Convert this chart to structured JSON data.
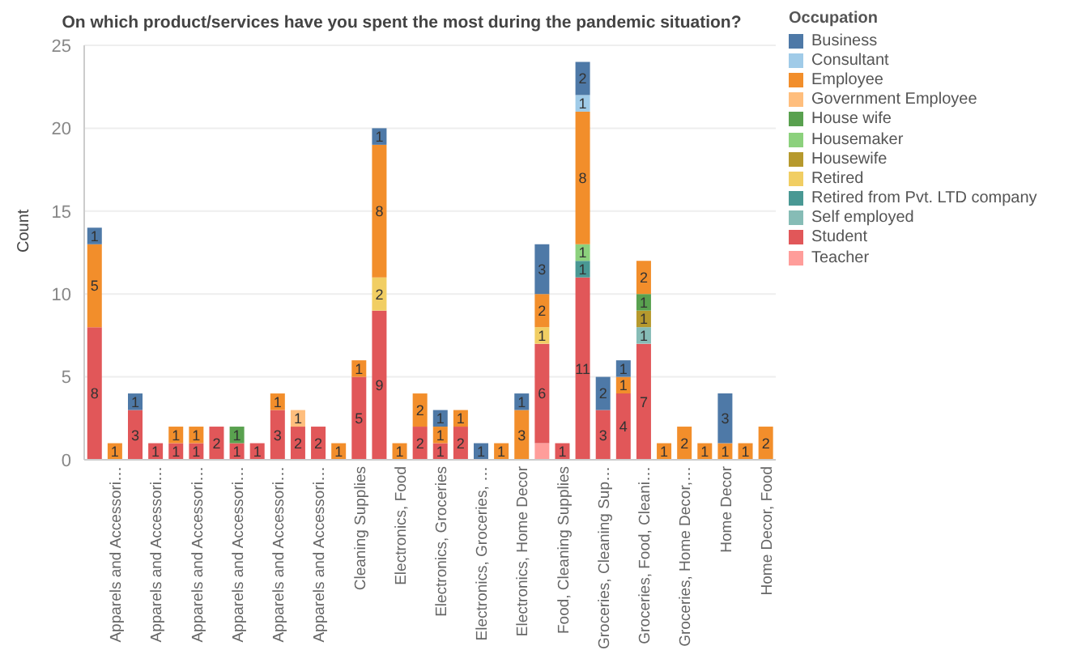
{
  "chart_data": {
    "type": "bar",
    "title": "On which product/services have you spent the most during the pandemic situation?",
    "ylabel": "Count",
    "legend_title": "Occupation",
    "categories": [
      null,
      "Apparels and Accessori…",
      null,
      "Apparels and Accessori…",
      null,
      "Apparels and Accessori…",
      null,
      "Apparels and Accessori…",
      null,
      "Apparels and Accessori…",
      null,
      "Apparels and Accessori…",
      null,
      "Cleaning Supplies",
      null,
      "Electronics, Food",
      null,
      "Electronics, Groceries",
      null,
      "Electronics, Groceries, …",
      null,
      "Electronics, Home Decor",
      null,
      "Food, Cleaning Supplies",
      null,
      "Groceries, Cleaning Sup…",
      null,
      "Groceries, Food, Cleani…",
      null,
      "Groceries, Home Decor,…",
      null,
      "Home Decor",
      null,
      "Home Decor, Food"
    ],
    "stacked": true,
    "data_labels": true,
    "ylim": [
      0,
      25
    ],
    "yticks": [
      0,
      5,
      10,
      15,
      20,
      25
    ],
    "grid": "y",
    "legend": "top right",
    "series": [
      {
        "name": "Teacher",
        "color": "#ff9d9a",
        "values": [
          null,
          null,
          null,
          null,
          null,
          null,
          null,
          null,
          null,
          null,
          null,
          null,
          null,
          null,
          null,
          null,
          null,
          null,
          null,
          null,
          null,
          null,
          1,
          null,
          null,
          null,
          null,
          null,
          null,
          null,
          null,
          null,
          null,
          null
        ],
        "value_labels": [
          null,
          null,
          null,
          null,
          null,
          null,
          null,
          null,
          null,
          null,
          null,
          null,
          null,
          null,
          null,
          null,
          null,
          null,
          null,
          null,
          null,
          null,
          null,
          null,
          null,
          null,
          null,
          null,
          null,
          null,
          null,
          null,
          null,
          null
        ]
      },
      {
        "name": "Student",
        "color": "#e15759",
        "values": [
          8,
          null,
          3,
          1,
          1,
          1,
          2,
          1,
          1,
          3,
          2,
          2,
          null,
          5,
          9,
          null,
          2,
          1,
          2,
          null,
          null,
          null,
          6,
          1,
          11,
          3,
          4,
          7,
          null,
          null,
          null,
          null,
          null,
          null
        ]
      },
      {
        "name": "Self employed",
        "color": "#86bcb6",
        "values": [
          null,
          null,
          null,
          null,
          null,
          null,
          null,
          null,
          null,
          null,
          null,
          null,
          null,
          null,
          null,
          null,
          null,
          null,
          null,
          null,
          null,
          null,
          null,
          null,
          null,
          null,
          null,
          1,
          null,
          null,
          null,
          null,
          null,
          null
        ]
      },
      {
        "name": "Retired from Pvt. LTD company",
        "color": "#499894",
        "values": [
          null,
          null,
          null,
          null,
          null,
          null,
          null,
          null,
          null,
          null,
          null,
          null,
          null,
          null,
          null,
          null,
          null,
          null,
          null,
          null,
          null,
          null,
          null,
          null,
          1,
          null,
          null,
          null,
          null,
          null,
          null,
          null,
          null,
          null
        ]
      },
      {
        "name": "Retired",
        "color": "#f1ce63",
        "values": [
          null,
          null,
          null,
          null,
          null,
          null,
          null,
          null,
          null,
          null,
          null,
          null,
          null,
          null,
          2,
          null,
          null,
          null,
          null,
          null,
          null,
          null,
          1,
          null,
          null,
          null,
          null,
          null,
          null,
          null,
          null,
          null,
          null,
          null
        ]
      },
      {
        "name": "Housewife",
        "color": "#b6992d",
        "values": [
          null,
          null,
          null,
          null,
          null,
          null,
          null,
          null,
          null,
          null,
          null,
          null,
          null,
          null,
          null,
          null,
          null,
          null,
          null,
          null,
          null,
          null,
          null,
          null,
          null,
          null,
          null,
          1,
          null,
          null,
          null,
          null,
          null,
          null
        ]
      },
      {
        "name": "Housemaker",
        "color": "#8cd17d",
        "values": [
          null,
          null,
          null,
          null,
          null,
          null,
          null,
          null,
          null,
          null,
          null,
          null,
          null,
          null,
          null,
          null,
          null,
          null,
          null,
          null,
          null,
          null,
          null,
          null,
          1,
          null,
          null,
          null,
          null,
          null,
          null,
          null,
          null,
          null
        ]
      },
      {
        "name": "House wife",
        "color": "#59a14f",
        "values": [
          null,
          null,
          null,
          null,
          null,
          null,
          null,
          1,
          null,
          null,
          null,
          null,
          null,
          null,
          null,
          null,
          null,
          null,
          null,
          null,
          null,
          null,
          null,
          null,
          null,
          null,
          null,
          1,
          null,
          null,
          null,
          null,
          null,
          null
        ]
      },
      {
        "name": "Government Employee",
        "color": "#ffbe7d",
        "values": [
          null,
          null,
          null,
          null,
          null,
          null,
          null,
          null,
          null,
          null,
          1,
          null,
          null,
          null,
          null,
          null,
          null,
          null,
          null,
          null,
          null,
          null,
          null,
          null,
          null,
          null,
          null,
          null,
          null,
          null,
          null,
          null,
          null,
          null
        ]
      },
      {
        "name": "Employee",
        "color": "#f28e2b",
        "values": [
          5,
          1,
          null,
          null,
          1,
          1,
          null,
          null,
          null,
          1,
          null,
          null,
          1,
          1,
          8,
          1,
          2,
          1,
          1,
          null,
          1,
          3,
          2,
          null,
          8,
          null,
          1,
          2,
          1,
          2,
          1,
          1,
          1,
          2
        ]
      },
      {
        "name": "Consultant",
        "color": "#a0cbe8",
        "values": [
          null,
          null,
          null,
          null,
          null,
          null,
          null,
          null,
          null,
          null,
          null,
          null,
          null,
          null,
          null,
          null,
          null,
          null,
          null,
          null,
          null,
          null,
          null,
          null,
          1,
          null,
          null,
          null,
          null,
          null,
          null,
          null,
          null,
          null
        ]
      },
      {
        "name": "Business",
        "color": "#4e79a7",
        "values": [
          1,
          null,
          1,
          null,
          null,
          null,
          null,
          null,
          null,
          null,
          null,
          null,
          null,
          null,
          1,
          null,
          null,
          1,
          null,
          1,
          null,
          1,
          3,
          null,
          2,
          2,
          1,
          null,
          null,
          null,
          null,
          3,
          null,
          null
        ]
      }
    ]
  }
}
